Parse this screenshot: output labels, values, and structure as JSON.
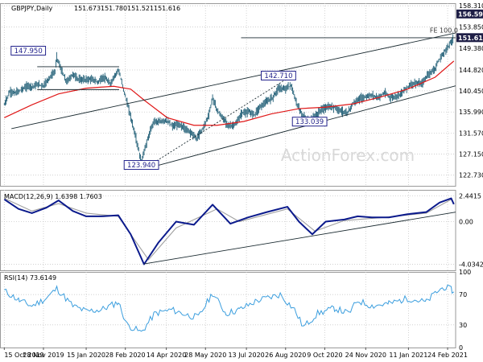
{
  "chart_data": [
    {
      "type": "candlestick",
      "title": "GBPJPY,Daily",
      "ohlc": [
        "151.673",
        "151.780",
        "151.521",
        "151.616"
      ],
      "y_axis_labels": [
        "158.310",
        "153.850",
        "149.380",
        "144.820",
        "140.450",
        "135.990",
        "131.570",
        "127.150",
        "122.730"
      ],
      "ylim": [
        120.48,
        158.85
      ],
      "price_tags": [
        {
          "label": "156.590",
          "value": 156.59,
          "color": "#1e1e46"
        },
        {
          "label": "151.616",
          "value": 151.616,
          "color": "#1e1e46"
        }
      ],
      "annotations": [
        {
          "label": "147.950",
          "date": "2019-11-11",
          "value": 147.95
        },
        {
          "label": "142.710",
          "date": "2020-08-18",
          "value": 142.71
        },
        {
          "label": "133.039",
          "date": "2020-09-22",
          "value": 133.04
        },
        {
          "label": "123.940",
          "date": "2020-03-17",
          "value": 123.94
        },
        {
          "label": "FE 100.0",
          "date": "2021-02-18",
          "value": 152.2
        }
      ],
      "close_series": [
        [
          "2019-10-15",
          137.5
        ],
        [
          "2019-10-21",
          140.2
        ],
        [
          "2019-10-28",
          140.0
        ],
        [
          "2019-11-04",
          140.8
        ],
        [
          "2019-11-11",
          141.5
        ],
        [
          "2019-11-15",
          141.3
        ],
        [
          "2019-11-22",
          141.8
        ],
        [
          "2019-11-28",
          141.5
        ],
        [
          "2019-12-05",
          143.3
        ],
        [
          "2019-12-11",
          144.5
        ],
        [
          "2019-12-13",
          147.6
        ],
        [
          "2019-12-18",
          144.8
        ],
        [
          "2019-12-24",
          142.3
        ],
        [
          "2019-12-31",
          143.9
        ],
        [
          "2020-01-07",
          142.8
        ],
        [
          "2020-01-14",
          142.8
        ],
        [
          "2020-01-21",
          142.9
        ],
        [
          "2020-01-28",
          142.3
        ],
        [
          "2020-02-04",
          143.3
        ],
        [
          "2020-02-11",
          141.9
        ],
        [
          "2020-02-18",
          144.2
        ],
        [
          "2020-02-20",
          145.0
        ],
        [
          "2020-02-27",
          140.1
        ],
        [
          "2020-03-05",
          135.0
        ],
        [
          "2020-03-10",
          131.2
        ],
        [
          "2020-03-17",
          125.4
        ],
        [
          "2020-03-19",
          127.0
        ],
        [
          "2020-03-24",
          130.2
        ],
        [
          "2020-03-31",
          134.1
        ],
        [
          "2020-04-07",
          133.9
        ],
        [
          "2020-04-14",
          134.3
        ],
        [
          "2020-04-21",
          133.0
        ],
        [
          "2020-04-28",
          133.4
        ],
        [
          "2020-05-05",
          132.5
        ],
        [
          "2020-05-12",
          131.7
        ],
        [
          "2020-05-18",
          130.4
        ],
        [
          "2020-05-25",
          132.5
        ],
        [
          "2020-06-01",
          135.5
        ],
        [
          "2020-06-05",
          139.0
        ],
        [
          "2020-06-10",
          136.4
        ],
        [
          "2020-06-17",
          134.5
        ],
        [
          "2020-06-24",
          133.0
        ],
        [
          "2020-07-01",
          133.4
        ],
        [
          "2020-07-08",
          135.8
        ],
        [
          "2020-07-15",
          136.0
        ],
        [
          "2020-07-22",
          135.5
        ],
        [
          "2020-07-29",
          137.2
        ],
        [
          "2020-08-05",
          138.2
        ],
        [
          "2020-08-12",
          139.1
        ],
        [
          "2020-08-18",
          141.0
        ],
        [
          "2020-08-25",
          140.8
        ],
        [
          "2020-09-01",
          141.6
        ],
        [
          "2020-09-07",
          138.0
        ],
        [
          "2020-09-14",
          135.2
        ],
        [
          "2020-09-22",
          134.0
        ],
        [
          "2020-09-29",
          135.3
        ],
        [
          "2020-10-06",
          136.6
        ],
        [
          "2020-10-13",
          137.0
        ],
        [
          "2020-10-20",
          137.0
        ],
        [
          "2020-10-27",
          136.3
        ],
        [
          "2020-11-03",
          135.6
        ],
        [
          "2020-11-10",
          137.9
        ],
        [
          "2020-11-17",
          138.7
        ],
        [
          "2020-11-24",
          139.2
        ],
        [
          "2020-12-01",
          139.5
        ],
        [
          "2020-12-08",
          139.0
        ],
        [
          "2020-12-15",
          140.0
        ],
        [
          "2020-12-22",
          139.0
        ],
        [
          "2020-12-29",
          139.3
        ],
        [
          "2021-01-05",
          140.3
        ],
        [
          "2021-01-12",
          141.6
        ],
        [
          "2021-01-19",
          142.1
        ],
        [
          "2021-01-26",
          141.9
        ],
        [
          "2021-02-02",
          143.9
        ],
        [
          "2021-02-09",
          144.9
        ],
        [
          "2021-02-16",
          147.4
        ],
        [
          "2021-02-23",
          149.3
        ],
        [
          "2021-03-01",
          151.0
        ],
        [
          "2021-03-03",
          151.6
        ]
      ],
      "sma_series": [
        [
          "2019-10-15",
          134.8
        ],
        [
          "2019-11-15",
          137.5
        ],
        [
          "2019-12-15",
          139.8
        ],
        [
          "2020-01-15",
          141.0
        ],
        [
          "2020-02-15",
          141.4
        ],
        [
          "2020-03-05",
          140.8
        ],
        [
          "2020-03-20",
          138.5
        ],
        [
          "2020-04-15",
          134.8
        ],
        [
          "2020-05-15",
          133.2
        ],
        [
          "2020-06-10",
          133.2
        ],
        [
          "2020-07-10",
          134.0
        ],
        [
          "2020-08-10",
          135.6
        ],
        [
          "2020-09-10",
          136.7
        ],
        [
          "2020-10-10",
          137.0
        ],
        [
          "2020-11-10",
          137.7
        ],
        [
          "2020-12-10",
          139.1
        ],
        [
          "2021-01-10",
          140.8
        ],
        [
          "2021-02-10",
          143.3
        ],
        [
          "2021-03-03",
          146.7
        ]
      ],
      "trendlines": [
        {
          "from": [
            "2020-02-21",
            145.5
          ],
          "to": [
            "2019-11-21",
            145.5
          ]
        },
        {
          "from": [
            "2019-11-21",
            140.7
          ],
          "to": [
            "2020-02-21",
            140.7
          ]
        },
        {
          "from": [
            "2020-03-19",
            123.94
          ],
          "to": [
            "2021-03-05",
            141.5
          ]
        },
        {
          "from": [
            "2019-10-23",
            132.5
          ],
          "to": [
            "2021-03-05",
            152.6
          ]
        },
        {
          "from": [
            "2020-03-19",
            123.94
          ],
          "to": [
            "2020-08-25",
            142.7
          ],
          "dotted": true
        },
        {
          "from": [
            "2020-07-07",
            151.6
          ],
          "to": [
            "2021-03-05",
            151.6
          ]
        }
      ]
    },
    {
      "type": "line",
      "title": "MACD(12,26,9) 1.6398 1.7603",
      "y_axis_labels": [
        "2.4415",
        "0.00",
        "-4.0342"
      ],
      "ylim": [
        -4.6,
        3.0
      ],
      "macd_series": [
        [
          "2019-10-15",
          2.1
        ],
        [
          "2019-10-31",
          1.2
        ],
        [
          "2019-11-15",
          0.8
        ],
        [
          "2019-12-01",
          1.3
        ],
        [
          "2019-12-15",
          2.0
        ],
        [
          "2019-12-31",
          1.0
        ],
        [
          "2020-01-15",
          0.5
        ],
        [
          "2020-02-01",
          0.5
        ],
        [
          "2020-02-20",
          0.6
        ],
        [
          "2020-03-05",
          -1.2
        ],
        [
          "2020-03-20",
          -4.03
        ],
        [
          "2020-04-05",
          -2.0
        ],
        [
          "2020-04-25",
          0.0
        ],
        [
          "2020-05-15",
          -0.3
        ],
        [
          "2020-06-05",
          1.6
        ],
        [
          "2020-06-25",
          -0.2
        ],
        [
          "2020-07-15",
          0.4
        ],
        [
          "2020-08-05",
          0.9
        ],
        [
          "2020-08-28",
          1.4
        ],
        [
          "2020-09-10",
          0.0
        ],
        [
          "2020-09-25",
          -1.2
        ],
        [
          "2020-10-10",
          0.0
        ],
        [
          "2020-10-31",
          0.2
        ],
        [
          "2020-11-15",
          0.5
        ],
        [
          "2020-12-01",
          0.4
        ],
        [
          "2020-12-20",
          0.4
        ],
        [
          "2021-01-10",
          0.7
        ],
        [
          "2021-01-31",
          0.9
        ],
        [
          "2021-02-15",
          1.8
        ],
        [
          "2021-02-28",
          2.2
        ],
        [
          "2021-03-03",
          1.64
        ]
      ],
      "signal_series": [
        [
          "2019-10-15",
          2.2
        ],
        [
          "2019-11-15",
          1.0
        ],
        [
          "2019-12-15",
          1.7
        ],
        [
          "2020-01-15",
          0.8
        ],
        [
          "2020-02-20",
          0.5
        ],
        [
          "2020-03-10",
          -1.8
        ],
        [
          "2020-03-25",
          -3.6
        ],
        [
          "2020-04-25",
          -0.6
        ],
        [
          "2020-06-10",
          1.2
        ],
        [
          "2020-07-05",
          0.0
        ],
        [
          "2020-08-28",
          1.2
        ],
        [
          "2020-09-28",
          -0.9
        ],
        [
          "2020-10-31",
          0.1
        ],
        [
          "2020-12-15",
          0.4
        ],
        [
          "2021-01-31",
          0.8
        ],
        [
          "2021-02-28",
          2.1
        ],
        [
          "2021-03-03",
          1.76
        ]
      ],
      "trendline": {
        "from": [
          "2020-03-20",
          -4.0
        ],
        "to": [
          "2021-03-05",
          0.9
        ]
      }
    },
    {
      "type": "line",
      "title": "RSI(14) 73.6149",
      "y_axis_labels": [
        "100",
        "70",
        "30",
        "0"
      ],
      "ylim": [
        0,
        100
      ],
      "levels": [
        70,
        30
      ],
      "rsi_series": [
        [
          "2019-10-15",
          75
        ],
        [
          "2019-11-01",
          62
        ],
        [
          "2019-11-15",
          55
        ],
        [
          "2019-12-01",
          65
        ],
        [
          "2019-12-13",
          78
        ],
        [
          "2019-12-31",
          55
        ],
        [
          "2020-01-15",
          48
        ],
        [
          "2020-02-01",
          50
        ],
        [
          "2020-02-20",
          60
        ],
        [
          "2020-03-01",
          30
        ],
        [
          "2020-03-17",
          20
        ],
        [
          "2020-04-01",
          45
        ],
        [
          "2020-04-20",
          50
        ],
        [
          "2020-05-10",
          42
        ],
        [
          "2020-05-20",
          40
        ],
        [
          "2020-06-05",
          72
        ],
        [
          "2020-06-20",
          45
        ],
        [
          "2020-07-05",
          50
        ],
        [
          "2020-07-25",
          62
        ],
        [
          "2020-08-20",
          70
        ],
        [
          "2020-09-05",
          50
        ],
        [
          "2020-09-15",
          27
        ],
        [
          "2020-10-01",
          45
        ],
        [
          "2020-10-20",
          52
        ],
        [
          "2020-11-05",
          45
        ],
        [
          "2020-11-15",
          62
        ],
        [
          "2020-12-01",
          55
        ],
        [
          "2020-12-20",
          58
        ],
        [
          "2021-01-10",
          65
        ],
        [
          "2021-01-31",
          60
        ],
        [
          "2021-02-10",
          72
        ],
        [
          "2021-02-20",
          80
        ],
        [
          "2021-03-01",
          76
        ],
        [
          "2021-03-03",
          73.6
        ]
      ]
    }
  ],
  "x_axis_labels": [
    {
      "label": "15 Oct 2019",
      "date": "2019-10-15"
    },
    {
      "label": "28 Nov 2019",
      "date": "2019-11-28"
    },
    {
      "label": "15 Jan 2020",
      "date": "2020-01-15"
    },
    {
      "label": "28 Feb 2020",
      "date": "2020-02-28"
    },
    {
      "label": "14 Apr 2020",
      "date": "2020-04-14"
    },
    {
      "label": "28 May 2020",
      "date": "2020-05-28"
    },
    {
      "label": "13 Jul 2020",
      "date": "2020-07-13"
    },
    {
      "label": "26 Aug 2020",
      "date": "2020-08-26"
    },
    {
      "label": "9 Oct 2020",
      "date": "2020-10-09"
    },
    {
      "label": "24 Nov 2020",
      "date": "2020-11-24"
    },
    {
      "label": "11 Jan 2021",
      "date": "2021-01-11"
    },
    {
      "label": "24 Feb 2021",
      "date": "2021-02-24"
    }
  ],
  "watermark": "ActionForex.com",
  "colors": {
    "price": "#1d5c74",
    "sma": "#e01818",
    "macd": "#0b1a8c",
    "signal": "#a0a0a0",
    "rsi": "#3b9ede",
    "trend": "#1a2a30",
    "label_box": "#23238c",
    "tag_bg": "#1e1e46",
    "grid": "#c9c9c9",
    "frame": "#9a9a9a"
  }
}
